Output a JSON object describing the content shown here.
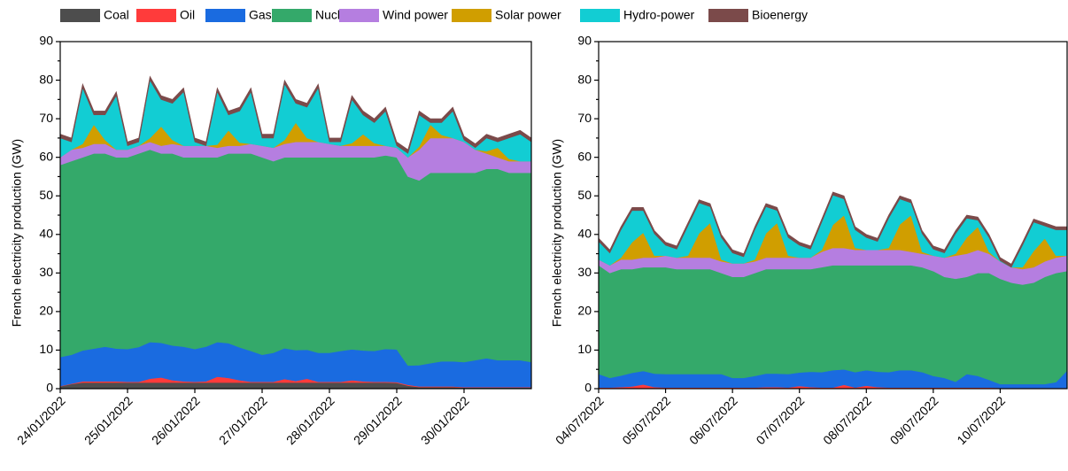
{
  "chart_data": [
    {
      "type": "area",
      "stacked": true,
      "y_label": "French electricity production (GW)",
      "x": [
        0,
        4,
        8,
        12,
        16,
        20,
        24,
        28,
        32,
        36,
        40,
        44,
        48,
        52,
        56,
        60,
        64,
        68,
        72,
        76,
        80,
        84,
        88,
        92,
        96,
        100,
        104,
        108,
        112,
        116,
        120,
        124,
        128,
        132,
        136,
        140,
        144,
        148,
        152,
        156,
        160,
        164,
        168
      ],
      "xlim": [
        0,
        168
      ],
      "xticks": [
        {
          "value": 0,
          "label": "24/01/2022"
        },
        {
          "value": 24,
          "label": "25/01/2022"
        },
        {
          "value": 48,
          "label": "26/01/2022"
        },
        {
          "value": 72,
          "label": "27/01/2022"
        },
        {
          "value": 96,
          "label": "28/01/2022"
        },
        {
          "value": 120,
          "label": "29/01/2022"
        },
        {
          "value": 144,
          "label": "30/01/2022"
        }
      ],
      "ylim": [
        0,
        90
      ],
      "yticks": [
        0,
        10,
        20,
        30,
        40,
        50,
        60,
        70,
        80,
        90
      ],
      "series": [
        {
          "name": "Coal",
          "color": "#4d4d4d",
          "values": [
            0.6,
            1.2,
            1.6,
            1.6,
            1.6,
            1.6,
            1.6,
            1.6,
            1.6,
            1.6,
            1.6,
            1.6,
            1.6,
            1.6,
            1.6,
            1.6,
            1.6,
            1.6,
            1.6,
            1.6,
            1.6,
            1.6,
            1.6,
            1.6,
            1.6,
            1.6,
            1.6,
            1.6,
            1.6,
            1.6,
            1.5,
            0.8,
            0.4,
            0.4,
            0.4,
            0.4,
            0.3,
            0.3,
            0.3,
            0.3,
            0.3,
            0.3,
            0.3
          ]
        },
        {
          "name": "Oil",
          "color": "#ff3b3b",
          "values": [
            0.1,
            0.1,
            0.3,
            0.3,
            0.3,
            0.3,
            0.2,
            0.2,
            1.0,
            1.3,
            0.6,
            0.3,
            0.2,
            0.3,
            1.5,
            1.2,
            0.6,
            0.2,
            0.2,
            0.2,
            0.9,
            0.4,
            1.0,
            0.2,
            0.2,
            0.2,
            0.6,
            0.3,
            0.2,
            0.2,
            0.2,
            0.2,
            0.2,
            0.2,
            0.2,
            0.2,
            0.1,
            0.1,
            0.1,
            0.1,
            0.1,
            0.1,
            0.1
          ]
        },
        {
          "name": "Gas",
          "color": "#1a6be0",
          "values": [
            7.5,
            7.5,
            8,
            8.5,
            9,
            8.5,
            8.5,
            9,
            9.5,
            9,
            9,
            9,
            8.5,
            9,
            9,
            9,
            8.5,
            8,
            7,
            7.5,
            8,
            8,
            7.5,
            7.5,
            7.5,
            8,
            8,
            8,
            8,
            8.5,
            8.5,
            5,
            5.5,
            6,
            6.5,
            6.5,
            6.5,
            7,
            7.5,
            7,
            7,
            7,
            6.5
          ]
        },
        {
          "name": "Nuclear",
          "color": "#34a96a",
          "values": [
            49.8,
            50.2,
            50.1,
            50.6,
            50.1,
            49.6,
            49.7,
            50.2,
            49.9,
            49.1,
            49.8,
            49.1,
            49.7,
            49.1,
            47.9,
            49.2,
            50.3,
            51.2,
            51.2,
            49.7,
            49.5,
            50,
            49.9,
            50.7,
            50.7,
            50.2,
            49.8,
            50.1,
            50.2,
            50.2,
            49.8,
            49,
            47.9,
            49.4,
            48.9,
            48.9,
            49.1,
            48.6,
            49.1,
            49.6,
            48.6,
            48.6,
            49.1
          ]
        },
        {
          "name": "Wind power",
          "color": "#b57ee0",
          "values": [
            2,
            3,
            2.5,
            2.5,
            2.5,
            2,
            2,
            2,
            2,
            2,
            2.5,
            3,
            3,
            3,
            2.5,
            2,
            2,
            2.5,
            3,
            3.5,
            3.5,
            4,
            4,
            4,
            3.5,
            3,
            3,
            3,
            3,
            2.5,
            2.5,
            5,
            8,
            9,
            9,
            9,
            8,
            6,
            4,
            3,
            3,
            3,
            3
          ]
        },
        {
          "name": "Solar power",
          "color": "#d09e00",
          "values": [
            0,
            0,
            1,
            5,
            1,
            0,
            0,
            0,
            1,
            5,
            1,
            0,
            0,
            0,
            0.8,
            4,
            0.8,
            0,
            0,
            0,
            1,
            5,
            1,
            0,
            0,
            0,
            0.7,
            3,
            0.7,
            0,
            0,
            0,
            0.8,
            3.5,
            0.8,
            0,
            0,
            0,
            0.6,
            2.5,
            0.6,
            0,
            0
          ]
        },
        {
          "name": "Hydro-power",
          "color": "#12cdd3",
          "values": [
            5,
            2,
            14.5,
            2.5,
            6.5,
            14,
            1,
            1,
            15,
            7,
            9.5,
            14,
            1,
            0,
            13.7,
            4,
            8.2,
            13.5,
            2,
            2.5,
            14.5,
            5,
            8,
            14,
            0.5,
            1,
            11.3,
            5,
            5.3,
            9,
            0.5,
            1,
            8.2,
            0.5,
            3.2,
            7,
            0.5,
            0.5,
            3.4,
            1.5,
            5.4,
            7,
            5
          ]
        },
        {
          "name": "Bioenergy",
          "color": "#7b4a4a",
          "values": [
            1,
            1,
            1,
            1,
            1,
            1,
            1,
            1,
            1,
            1,
            1,
            1,
            1,
            1,
            1,
            1,
            1,
            1,
            1,
            1,
            1,
            1,
            1,
            1,
            1,
            1,
            1,
            1,
            1,
            1,
            1,
            1,
            1,
            1,
            1,
            1,
            1,
            1,
            1,
            1,
            1,
            1,
            1
          ]
        }
      ]
    },
    {
      "type": "area",
      "stacked": true,
      "y_label": "French electricity production (GW)",
      "x": [
        0,
        4,
        8,
        12,
        16,
        20,
        24,
        28,
        32,
        36,
        40,
        44,
        48,
        52,
        56,
        60,
        64,
        68,
        72,
        76,
        80,
        84,
        88,
        92,
        96,
        100,
        104,
        108,
        112,
        116,
        120,
        124,
        128,
        132,
        136,
        140,
        144,
        148,
        152,
        156,
        160,
        164,
        168
      ],
      "xlim": [
        0,
        168
      ],
      "xticks": [
        {
          "value": 0,
          "label": "04/07/2022"
        },
        {
          "value": 24,
          "label": "05/07/2022"
        },
        {
          "value": 48,
          "label": "06/07/2022"
        },
        {
          "value": 72,
          "label": "07/07/2022"
        },
        {
          "value": 96,
          "label": "08/07/2022"
        },
        {
          "value": 120,
          "label": "09/07/2022"
        },
        {
          "value": 144,
          "label": "10/07/2022"
        }
      ],
      "ylim": [
        0,
        90
      ],
      "yticks": [
        0,
        10,
        20,
        30,
        40,
        50,
        60,
        70,
        80,
        90
      ],
      "series": [
        {
          "name": "Coal",
          "color": "#4d4d4d",
          "values": [
            0.1,
            0.1,
            0.1,
            0.1,
            0.1,
            0.1,
            0.1,
            0.1,
            0.1,
            0.1,
            0.1,
            0.1,
            0.1,
            0.1,
            0.1,
            0.1,
            0.1,
            0.1,
            0.1,
            0.1,
            0.1,
            0.1,
            0.1,
            0.1,
            0.1,
            0.1,
            0.1,
            0.1,
            0.1,
            0.1,
            0.1,
            0.1,
            0.1,
            0.1,
            0.1,
            0.1,
            0.1,
            0.1,
            0.1,
            0.1,
            0.1,
            0.1,
            0.1
          ]
        },
        {
          "name": "Oil",
          "color": "#ff3b3b",
          "values": [
            0.2,
            0.2,
            0.3,
            0.5,
            1.0,
            0.3,
            0.2,
            0.2,
            0.2,
            0.2,
            0.2,
            0.2,
            0.2,
            0.2,
            0.2,
            0.3,
            0.3,
            0.2,
            0.6,
            0.3,
            0.2,
            0.2,
            0.9,
            0.2,
            0.7,
            0.3,
            0.2,
            0.2,
            0.2,
            0.2,
            0.2,
            0.2,
            0.2,
            0.2,
            0.2,
            0.2,
            0.1,
            0.1,
            0.1,
            0.1,
            0.1,
            0.1,
            0.1
          ]
        },
        {
          "name": "Gas",
          "color": "#1a6be0",
          "values": [
            3.5,
            2.5,
            3,
            3.5,
            3.5,
            3.5,
            3.5,
            3.5,
            3.5,
            3.5,
            3.5,
            3.5,
            2.5,
            2.5,
            3,
            3.5,
            3.5,
            3.5,
            3.5,
            4,
            4,
            4.5,
            4,
            4,
            4,
            4,
            4,
            4.5,
            4.5,
            4,
            3,
            2.5,
            1.5,
            3.5,
            3,
            2,
            1,
            1,
            1,
            1,
            1,
            1.5,
            4.5
          ]
        },
        {
          "name": "Nuclear",
          "color": "#34a96a",
          "values": [
            28.2,
            27.2,
            27.6,
            26.9,
            26.9,
            27.6,
            27.7,
            27.2,
            27.2,
            27.2,
            27.2,
            26.2,
            26.2,
            26.2,
            26.7,
            27.1,
            27.1,
            27.2,
            26.8,
            26.6,
            27.2,
            27.2,
            27,
            27.7,
            27.2,
            27.6,
            27.7,
            27.2,
            27.2,
            27.2,
            27.2,
            26.2,
            26.7,
            25.2,
            26.7,
            27.7,
            27.3,
            26.3,
            25.8,
            26.3,
            27.8,
            28.3,
            25.8
          ]
        },
        {
          "name": "Wind power",
          "color": "#b57ee0",
          "values": [
            1.5,
            2,
            2.5,
            2.5,
            2.5,
            2.5,
            3,
            3,
            3,
            3,
            3,
            3,
            3.5,
            3.5,
            3,
            3,
            3,
            3,
            3,
            3,
            4,
            4.5,
            4.5,
            4,
            4,
            4,
            4,
            4,
            3.5,
            3.5,
            4,
            5,
            6,
            6,
            6,
            5,
            4.5,
            4,
            4,
            4,
            4,
            4,
            4
          ]
        },
        {
          "name": "Solar power",
          "color": "#d09e00",
          "values": [
            0,
            0,
            0.5,
            4.5,
            6.5,
            0.5,
            0,
            0,
            0.5,
            6.3,
            9,
            0.5,
            0,
            0,
            0.5,
            6.3,
            9,
            0.5,
            0,
            0,
            0.5,
            6,
            8.5,
            0.5,
            0,
            0,
            0.5,
            6.6,
            9.5,
            0.5,
            0,
            0,
            0.5,
            4.2,
            6,
            0.5,
            0,
            0,
            0.5,
            4.2,
            6,
            0.5,
            0
          ]
        },
        {
          "name": "Hydro-power",
          "color": "#12cdd3",
          "values": [
            4.7,
            3.2,
            7.2,
            8.2,
            5.7,
            5.7,
            2.7,
            2.2,
            7.7,
            7.9,
            4.2,
            5.7,
            2.7,
            1.7,
            7.7,
            6.9,
            3.2,
            4.7,
            3.2,
            2.2,
            7.2,
            7.7,
            4.2,
            4.7,
            3.2,
            2.2,
            7.7,
            6.6,
            3.2,
            4.7,
            1.7,
            1.2,
            5.2,
            5,
            1.7,
            3.7,
            0.2,
            0,
            5.7,
            7.5,
            3.2,
            6.7,
            6.7
          ]
        },
        {
          "name": "Bioenergy",
          "color": "#7b4a4a",
          "values": [
            0.8,
            0.8,
            0.8,
            0.8,
            0.8,
            0.8,
            0.8,
            0.8,
            0.8,
            0.8,
            0.8,
            0.8,
            0.8,
            0.8,
            0.8,
            0.8,
            0.8,
            0.8,
            0.8,
            0.8,
            0.8,
            0.8,
            0.8,
            0.8,
            0.8,
            0.8,
            0.8,
            0.8,
            0.8,
            0.8,
            0.8,
            0.8,
            0.8,
            0.8,
            0.8,
            0.8,
            0.8,
            0.8,
            0.8,
            0.8,
            0.8,
            0.8,
            0.8
          ]
        }
      ]
    }
  ]
}
